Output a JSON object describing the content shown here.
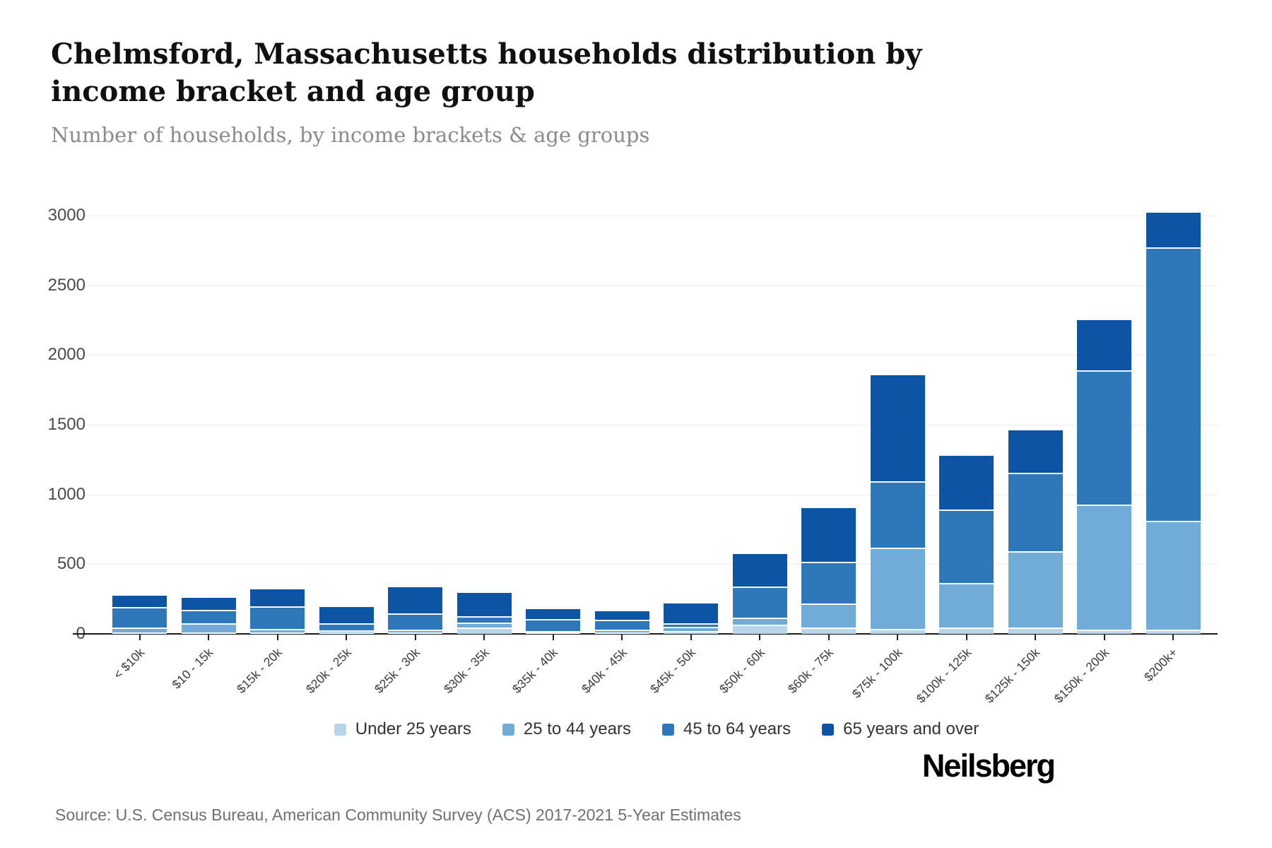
{
  "header": {
    "title": "Chelmsford, Massachusetts households distribution by income bracket and age group",
    "subtitle": "Number of households, by income brackets & age groups"
  },
  "footer": {
    "source": "Source: U.S. Census Bureau, American Community Survey (ACS) 2017-2021 5-Year Estimates",
    "brand": "Neilsberg"
  },
  "colors": {
    "grid": "#ededed",
    "axis": "#1c1c1c",
    "under_25": "#b8d5ea",
    "age_25_44": "#71abd7",
    "age_45_64": "#2e77b8",
    "age_65_over": "#0e54a5"
  },
  "chart_data": {
    "type": "bar",
    "stacked": true,
    "title": "Chelmsford, Massachusetts households distribution by income bracket and age group",
    "subtitle": "Number of households, by income brackets & age groups",
    "xlabel": "",
    "ylabel": "Number of households",
    "ylim": [
      0,
      3000
    ],
    "yticks": [
      0,
      500,
      1000,
      1500,
      2000,
      2500,
      3000
    ],
    "grid": "horizontal",
    "legend_position": "bottom",
    "categories": [
      "< $10k",
      "$10 - 15k",
      "$15k - 20k",
      "$20k - 25k",
      "$25k - 30k",
      "$30k - 35k",
      "$35k - 40k",
      "$40k - 45k",
      "$45k - 50k",
      "$50k - 60k",
      "$60k - 75k",
      "$75k - 100k",
      "$100k - 125k",
      "$125k - 150k",
      "$150k - 200k",
      "$200k+"
    ],
    "series": [
      {
        "name": "Under 25 years",
        "color": "#b8d5ea",
        "values": [
          10,
          10,
          10,
          5,
          10,
          45,
          5,
          5,
          20,
          65,
          45,
          35,
          45,
          45,
          30,
          30
        ]
      },
      {
        "name": "25 to 44 years",
        "color": "#71abd7",
        "values": [
          35,
          65,
          25,
          15,
          20,
          35,
          10,
          20,
          30,
          50,
          175,
          585,
          320,
          550,
          900,
          780
        ]
      },
      {
        "name": "45 to 64 years",
        "color": "#2e77b8",
        "values": [
          145,
          95,
          165,
          50,
          115,
          45,
          85,
          70,
          25,
          225,
          295,
          475,
          525,
          560,
          960,
          1960
        ]
      },
      {
        "name": "65 years and over",
        "color": "#0e54a5",
        "values": [
          85,
          90,
          120,
          120,
          190,
          170,
          70,
          60,
          145,
          235,
          385,
          760,
          385,
          305,
          360,
          250
        ]
      }
    ],
    "totals": [
      275,
      260,
      320,
      190,
      335,
      295,
      170,
      155,
      220,
      575,
      900,
      1855,
      1275,
      1460,
      2250,
      3020
    ]
  }
}
